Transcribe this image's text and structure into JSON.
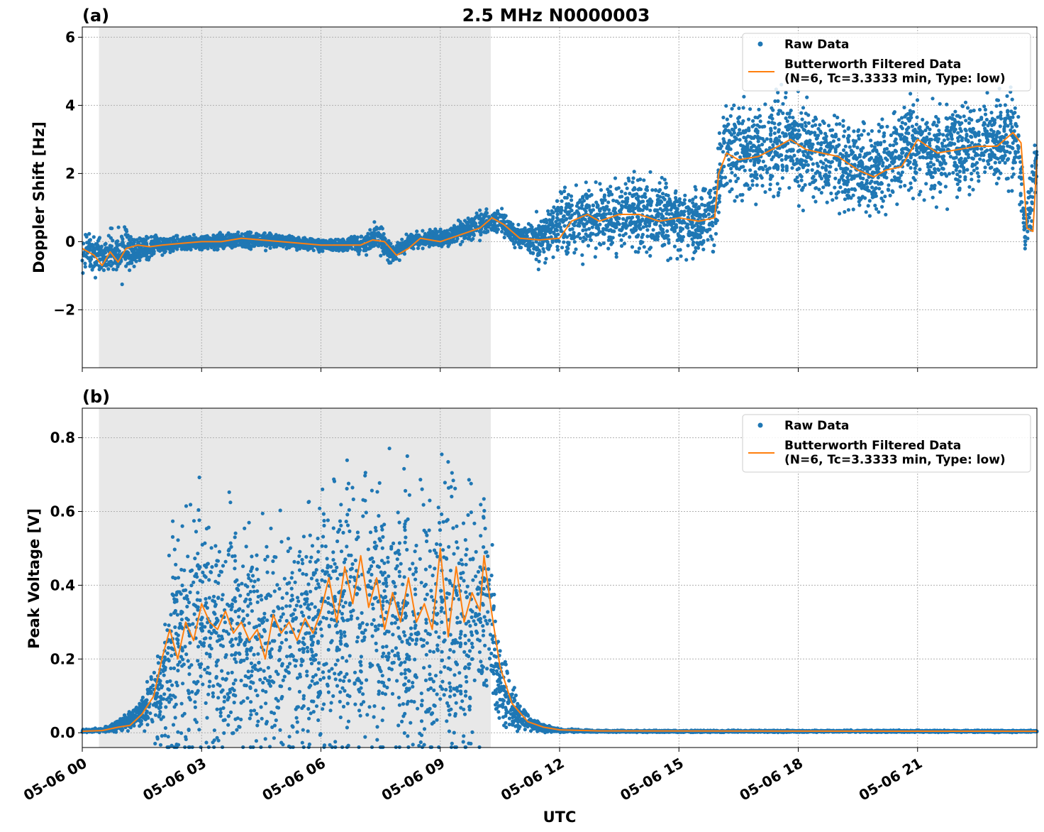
{
  "figure": {
    "title": "2.5 MHz N0000003",
    "xlabel": "UTC"
  },
  "colors": {
    "raw": "#1f77b4",
    "filtered": "#ff7f0e",
    "shade": "#e8e8e8",
    "grid": "#b0b0b0"
  },
  "legend": {
    "raw_label": "Raw Data",
    "filtered_label_line1": "Butterworth Filtered Data",
    "filtered_label_line2": "(N=6, Tc=3.3333 min, Type: low)"
  },
  "chart_data": [
    {
      "type": "scatter",
      "panel": "(a)",
      "title": "2.5 MHz N0000003",
      "xlabel": "",
      "ylabel": "Doppler Shift [Hz]",
      "xlim_hours": [
        0,
        24
      ],
      "ylim": [
        -3.7,
        6.3
      ],
      "yticks": [
        -2,
        0,
        2,
        4,
        6
      ],
      "ytick_labels": [
        "−2",
        "0",
        "2",
        "4",
        "6"
      ],
      "grid": true,
      "legend_position": "top-right",
      "shaded_interval_hours": [
        0.42,
        10.27
      ],
      "series": [
        {
          "name": "Raw Data",
          "style": "dots",
          "x_hours": [
            0.0,
            0.5,
            1.0,
            1.5,
            2.0,
            3.0,
            4.0,
            5.0,
            6.0,
            7.0,
            7.4,
            7.8,
            8.2,
            9.0,
            10.0,
            10.5,
            11.0,
            11.5,
            12.0,
            13.0,
            14.0,
            15.0,
            15.9,
            16.1,
            17.0,
            17.6,
            18.0,
            19.0,
            19.5,
            20.0,
            20.8,
            21.5,
            22.5,
            23.5,
            23.7,
            24.0
          ],
          "center": [
            -0.3,
            -0.3,
            -0.4,
            -0.2,
            -0.1,
            0.0,
            0.05,
            0.0,
            -0.1,
            -0.1,
            0.2,
            -0.4,
            0.0,
            0.1,
            0.5,
            0.6,
            0.1,
            0.1,
            0.5,
            0.7,
            0.8,
            0.6,
            0.7,
            2.8,
            2.6,
            3.0,
            2.7,
            2.4,
            2.0,
            2.1,
            2.9,
            2.6,
            2.8,
            3.1,
            0.2,
            2.4
          ],
          "spread": [
            0.9,
            0.6,
            1.0,
            0.4,
            0.3,
            0.25,
            0.3,
            0.25,
            0.2,
            0.3,
            0.5,
            0.4,
            0.3,
            0.3,
            0.5,
            0.5,
            0.4,
            0.9,
            1.1,
            1.2,
            1.3,
            1.2,
            1.2,
            1.7,
            1.7,
            1.8,
            1.8,
            1.6,
            1.5,
            1.6,
            1.7,
            1.6,
            1.6,
            1.5,
            0.7,
            1.5
          ]
        },
        {
          "name": "Butterworth Filtered Data\n(N=6, Tc=3.3333 min, Type: low)",
          "style": "line",
          "x_hours": [
            0.0,
            0.3,
            0.5,
            0.7,
            0.9,
            1.1,
            1.4,
            1.7,
            2.0,
            2.5,
            3.0,
            3.5,
            4.0,
            4.5,
            5.0,
            5.5,
            6.0,
            6.5,
            7.0,
            7.3,
            7.6,
            7.9,
            8.2,
            8.5,
            9.0,
            9.5,
            10.0,
            10.3,
            10.6,
            11.0,
            11.5,
            12.0,
            12.3,
            12.7,
            13.0,
            13.5,
            14.0,
            14.5,
            15.0,
            15.5,
            15.9,
            16.0,
            16.2,
            16.5,
            17.0,
            17.5,
            17.8,
            18.2,
            18.6,
            19.0,
            19.5,
            19.9,
            20.2,
            20.6,
            21.0,
            21.5,
            22.0,
            22.5,
            23.0,
            23.4,
            23.6,
            23.75,
            23.9,
            24.0
          ],
          "values": [
            -0.2,
            -0.4,
            -0.7,
            -0.3,
            -0.6,
            -0.2,
            -0.1,
            -0.15,
            -0.1,
            -0.05,
            0.0,
            0.0,
            0.1,
            0.05,
            0.0,
            -0.05,
            -0.1,
            -0.1,
            -0.1,
            0.05,
            0.0,
            -0.4,
            -0.2,
            0.1,
            0.0,
            0.2,
            0.4,
            0.7,
            0.5,
            0.1,
            0.05,
            0.1,
            0.6,
            0.8,
            0.6,
            0.8,
            0.8,
            0.6,
            0.7,
            0.6,
            0.7,
            2.0,
            2.6,
            2.4,
            2.5,
            2.8,
            3.0,
            2.7,
            2.6,
            2.5,
            2.1,
            1.9,
            2.1,
            2.2,
            3.0,
            2.6,
            2.7,
            2.8,
            2.8,
            3.2,
            2.9,
            0.4,
            0.3,
            2.4
          ]
        }
      ]
    },
    {
      "type": "scatter",
      "panel": "(b)",
      "title": "",
      "xlabel": "UTC",
      "ylabel": "Peak Voltage [V]",
      "xlim_hours": [
        0,
        24
      ],
      "ylim": [
        -0.04,
        0.88
      ],
      "yticks": [
        0.0,
        0.2,
        0.4,
        0.6,
        0.8
      ],
      "ytick_labels": [
        "0.0",
        "0.2",
        "0.4",
        "0.6",
        "0.8"
      ],
      "xticks_hours": [
        0,
        3,
        6,
        9,
        12,
        15,
        18,
        21
      ],
      "xtick_labels": [
        "05-06 00",
        "05-06 03",
        "05-06 06",
        "05-06 09",
        "05-06 12",
        "05-06 15",
        "05-06 18",
        "05-06 21"
      ],
      "grid": true,
      "legend_position": "top-right",
      "shaded_interval_hours": [
        0.42,
        10.27
      ],
      "series": [
        {
          "name": "Raw Data",
          "style": "dots",
          "x_hours": [
            0.0,
            0.5,
            1.0,
            1.5,
            2.0,
            2.3,
            2.8,
            3.3,
            4.0,
            4.5,
            5.0,
            5.5,
            6.0,
            6.5,
            7.0,
            7.5,
            8.0,
            8.5,
            9.0,
            9.5,
            10.0,
            10.2,
            10.5,
            11.0,
            11.5,
            12.0,
            13.0,
            24.0
          ],
          "center": [
            0.005,
            0.008,
            0.02,
            0.06,
            0.12,
            0.25,
            0.28,
            0.27,
            0.25,
            0.24,
            0.25,
            0.26,
            0.32,
            0.3,
            0.33,
            0.33,
            0.3,
            0.27,
            0.28,
            0.3,
            0.33,
            0.35,
            0.12,
            0.04,
            0.015,
            0.006,
            0.004,
            0.004
          ],
          "spread": [
            0.005,
            0.008,
            0.02,
            0.05,
            0.15,
            0.38,
            0.45,
            0.4,
            0.35,
            0.35,
            0.35,
            0.35,
            0.48,
            0.45,
            0.48,
            0.45,
            0.45,
            0.45,
            0.5,
            0.5,
            0.45,
            0.3,
            0.15,
            0.04,
            0.015,
            0.006,
            0.003,
            0.003
          ]
        },
        {
          "name": "Butterworth Filtered Data\n(N=6, Tc=3.3333 min, Type: low)",
          "style": "line",
          "x_hours": [
            0.0,
            0.5,
            0.9,
            1.2,
            1.5,
            1.8,
            2.0,
            2.2,
            2.4,
            2.6,
            2.8,
            3.0,
            3.2,
            3.4,
            3.6,
            3.8,
            4.0,
            4.2,
            4.4,
            4.6,
            4.8,
            5.0,
            5.2,
            5.4,
            5.6,
            5.8,
            6.0,
            6.2,
            6.4,
            6.6,
            6.8,
            7.0,
            7.2,
            7.4,
            7.6,
            7.8,
            8.0,
            8.2,
            8.4,
            8.6,
            8.8,
            9.0,
            9.2,
            9.4,
            9.6,
            9.8,
            10.0,
            10.1,
            10.3,
            10.5,
            10.8,
            11.2,
            11.6,
            12.0,
            13.0,
            24.0
          ],
          "values": [
            0.004,
            0.006,
            0.015,
            0.02,
            0.05,
            0.1,
            0.2,
            0.28,
            0.2,
            0.3,
            0.25,
            0.35,
            0.3,
            0.28,
            0.33,
            0.27,
            0.3,
            0.25,
            0.28,
            0.2,
            0.32,
            0.27,
            0.3,
            0.25,
            0.31,
            0.27,
            0.33,
            0.42,
            0.3,
            0.45,
            0.35,
            0.48,
            0.34,
            0.42,
            0.28,
            0.38,
            0.3,
            0.42,
            0.3,
            0.35,
            0.28,
            0.5,
            0.26,
            0.45,
            0.3,
            0.38,
            0.33,
            0.48,
            0.32,
            0.18,
            0.08,
            0.03,
            0.015,
            0.008,
            0.005,
            0.004
          ]
        }
      ]
    }
  ]
}
